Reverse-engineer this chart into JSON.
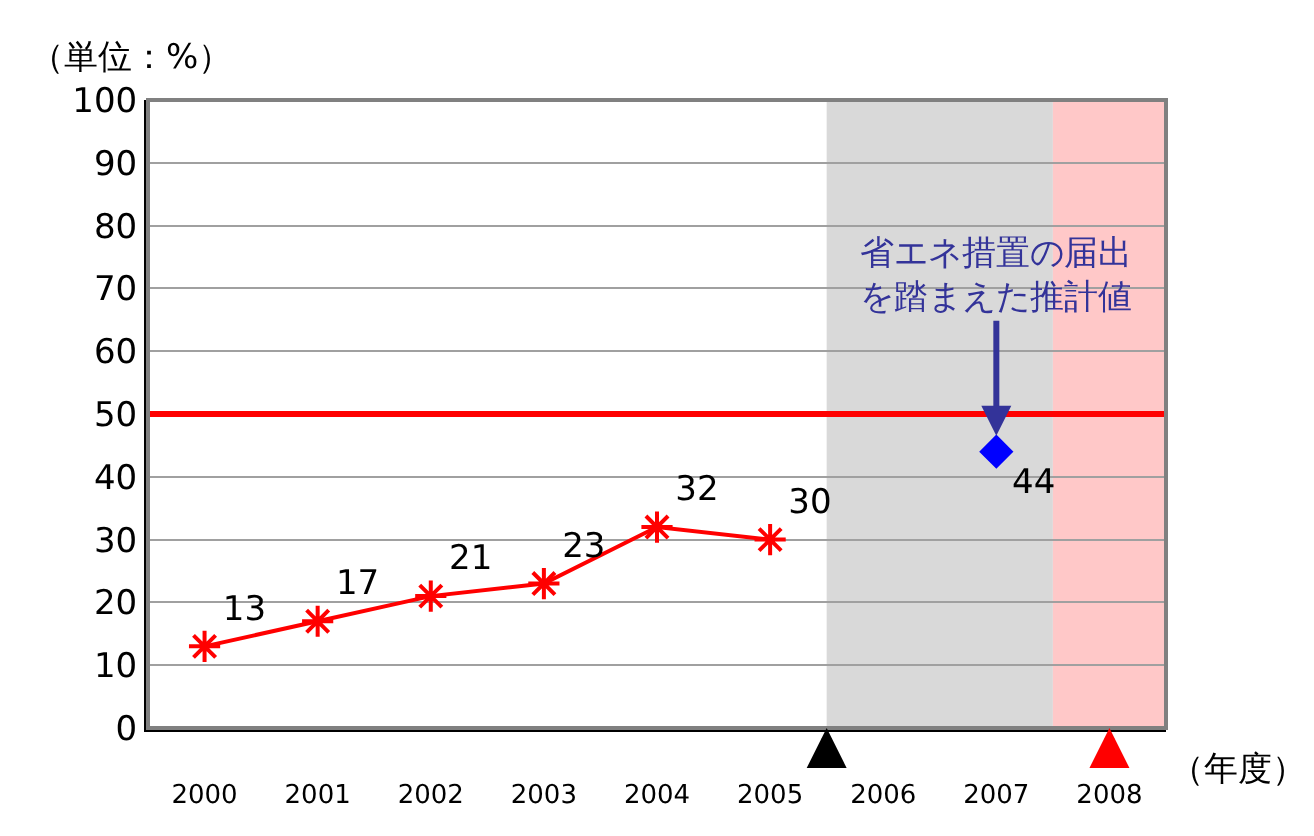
{
  "chart_data": {
    "type": "line",
    "ylabel": "（単位：%）",
    "xlabel": "（年度）",
    "x": [
      2000,
      2001,
      2002,
      2003,
      2004,
      2005,
      2006,
      2007
    ],
    "xlim": [
      1999.5,
      2008.5
    ],
    "xticks": [
      2000,
      2001,
      2002,
      2003,
      2004,
      2005,
      2006,
      2007,
      2008
    ],
    "ylim": [
      0,
      100
    ],
    "yticks": [
      0,
      10,
      20,
      30,
      40,
      50,
      60,
      70,
      80,
      90,
      100
    ],
    "grid": "y",
    "data_labels": true,
    "line_style": "solid",
    "series": [
      {
        "type": "line",
        "marker": "cross",
        "color": "#ff0000",
        "values": [
          13,
          17,
          21,
          23,
          32,
          30,
          null,
          null
        ]
      },
      {
        "type": "scatter",
        "marker": "diamond",
        "color": "#0000ff",
        "values": [
          null,
          null,
          null,
          null,
          null,
          null,
          null,
          44
        ]
      }
    ],
    "ref_lines": [
      {
        "axis": "y",
        "value": 50,
        "color": "#ff0000"
      }
    ],
    "bands": [
      {
        "axis": "x",
        "from": 2005.5,
        "to": 2007.5,
        "color": "#d9d9d9"
      },
      {
        "axis": "x",
        "from": 2007.5,
        "to": 2008.5,
        "color": "#ffc8c8"
      }
    ],
    "annotations": [
      {
        "text": "省エネ措置の届出を踏まえた推計値",
        "x": 2007,
        "y": 44
      }
    ]
  }
}
